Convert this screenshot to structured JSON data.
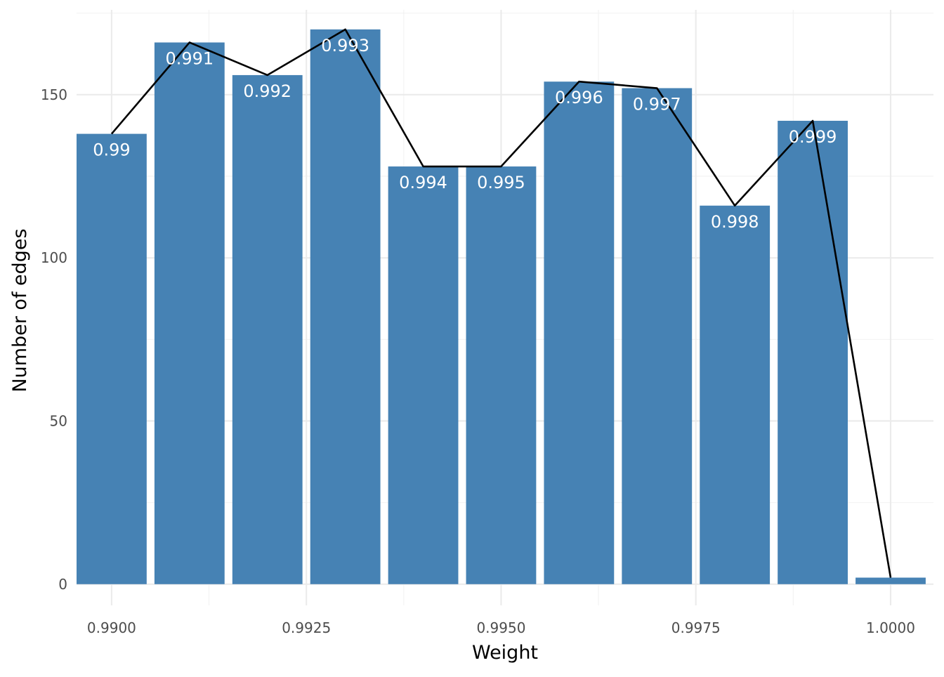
{
  "chart_data": {
    "type": "bar",
    "title": "",
    "xlabel": "Weight",
    "ylabel": "Number of edges",
    "xlim": [
      0.98955,
      1.00055
    ],
    "ylim": [
      -6.5,
      176
    ],
    "x_ticks": [
      {
        "value": 0.99,
        "label": "0.9900"
      },
      {
        "value": 0.9925,
        "label": "0.9925"
      },
      {
        "value": 0.995,
        "label": "0.9950"
      },
      {
        "value": 0.9975,
        "label": "0.9975"
      },
      {
        "value": 1.0,
        "label": "1.0000"
      }
    ],
    "x_minor_ticks": [
      0.99125,
      0.99375,
      0.99625,
      0.99875
    ],
    "y_ticks": [
      {
        "value": 0,
        "label": "0"
      },
      {
        "value": 50,
        "label": "50"
      },
      {
        "value": 100,
        "label": "100"
      },
      {
        "value": 150,
        "label": "150"
      }
    ],
    "y_minor_ticks": [
      25,
      75,
      125,
      175
    ],
    "grid": true,
    "bar_width": 0.0009,
    "bar_color": "#4682b4",
    "line_color": "#000000",
    "x": [
      0.99,
      0.991,
      0.992,
      0.993,
      0.994,
      0.995,
      0.996,
      0.997,
      0.998,
      0.999,
      1.0
    ],
    "values": [
      138,
      166,
      156,
      170,
      128,
      128,
      154,
      152,
      116,
      142,
      2
    ],
    "data_labels": [
      "0.99",
      "0.991",
      "0.992",
      "0.993",
      "0.994",
      "0.995",
      "0.996",
      "0.997",
      "0.998",
      "0.999",
      ""
    ],
    "overlay_line": {
      "type": "line",
      "x": [
        0.99,
        0.991,
        0.992,
        0.993,
        0.994,
        0.995,
        0.996,
        0.997,
        0.998,
        0.999,
        1.0
      ],
      "y": [
        138,
        166,
        156,
        170,
        128,
        128,
        154,
        152,
        116,
        142,
        2
      ]
    }
  }
}
